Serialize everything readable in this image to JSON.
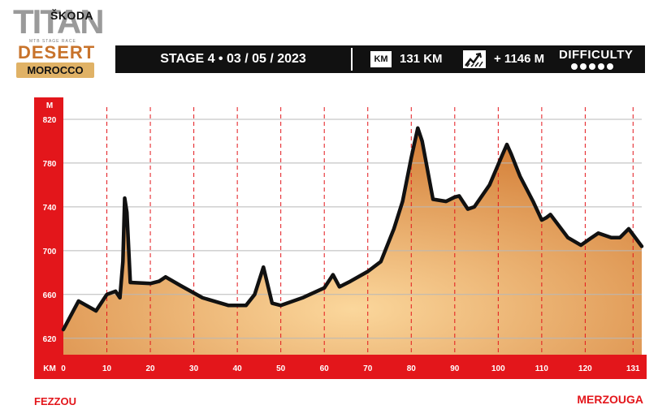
{
  "logo": {
    "brand": "ŠKODA",
    "title": "TITAN",
    "tagline": "MTB STAGE RACE",
    "desert": "DESERT",
    "country": "MOROCCO"
  },
  "header": {
    "stage": "STAGE 4 • 03 / 05 / 2023",
    "distance_icon": "KM",
    "distance": "131 KM",
    "elevation_icon": "elevation-gain-icon",
    "elevation": "+ 1146 M",
    "difficulty_label": "DIFFICULTY",
    "difficulty_dots": 5
  },
  "colors": {
    "accent_red": "#e3161b",
    "bar_black": "#111111",
    "fill_light": "#fbd79c",
    "fill_dark": "#d5813a"
  },
  "start_location": "FEZZOU",
  "end_location": "MERZOUGA",
  "chart_data": {
    "type": "area",
    "title": "",
    "xlabel": "KM",
    "ylabel": "M",
    "xlim": [
      0,
      133
    ],
    "ylim": [
      605,
      840
    ],
    "x_ticks": [
      0,
      10,
      20,
      30,
      40,
      50,
      60,
      70,
      80,
      90,
      100,
      110,
      120,
      131
    ],
    "y_ticks": [
      620,
      660,
      700,
      740,
      780,
      820
    ],
    "grid": true,
    "series": [
      {
        "x": [
          0,
          3.5,
          7.5,
          10,
          12,
          13,
          13.7,
          14.1,
          14.6,
          15.4,
          20,
          22,
          23.5,
          27,
          32,
          38,
          42,
          44,
          46,
          48,
          50,
          55,
          60,
          62,
          63.5,
          66,
          70,
          73,
          76,
          78,
          80,
          81.5,
          82.5,
          85,
          88,
          90,
          91,
          93,
          94.5,
          98,
          101,
          102,
          103,
          105,
          108,
          110,
          111,
          112,
          116,
          119,
          121.5,
          123,
          126,
          128,
          130,
          133
        ],
        "values": [
          628,
          654,
          645,
          660,
          663,
          657,
          690,
          748,
          735,
          671,
          670,
          672,
          676,
          668,
          657,
          650,
          650,
          660,
          685,
          652,
          650,
          657,
          666,
          678,
          667,
          672,
          681,
          690,
          720,
          745,
          785,
          812,
          800,
          747,
          745,
          749,
          750,
          738,
          740,
          760,
          788,
          797,
          788,
          768,
          745,
          728,
          730,
          733,
          712,
          705,
          712,
          716,
          712,
          712,
          720,
          704
        ]
      }
    ]
  }
}
